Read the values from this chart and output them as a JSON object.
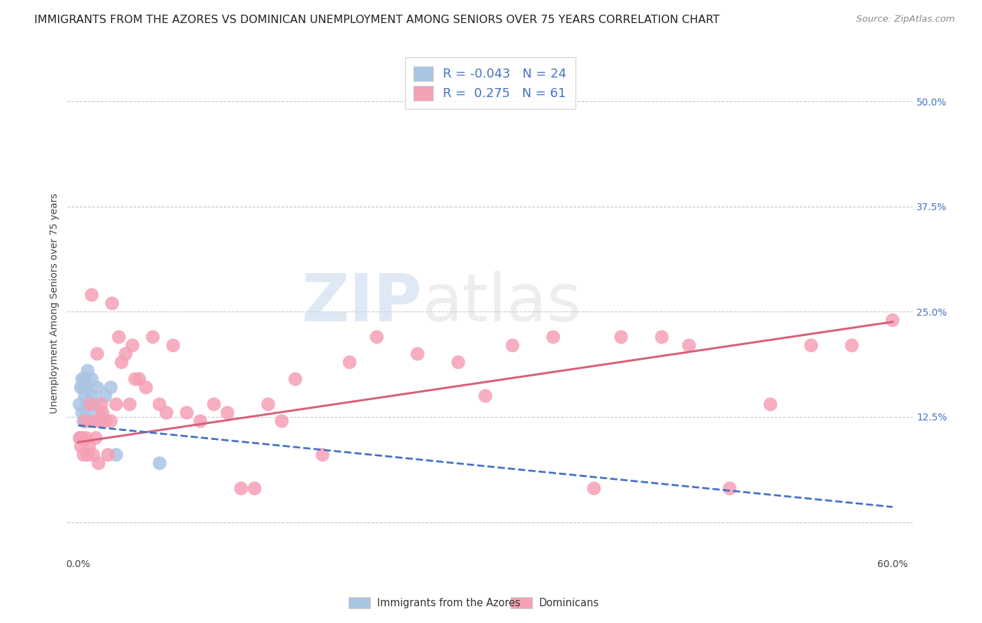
{
  "title": "IMMIGRANTS FROM THE AZORES VS DOMINICAN UNEMPLOYMENT AMONG SENIORS OVER 75 YEARS CORRELATION CHART",
  "source": "Source: ZipAtlas.com",
  "ylabel": "Unemployment Among Seniors over 75 years",
  "xlim": [
    -0.008,
    0.615
  ],
  "ylim": [
    -0.04,
    0.56
  ],
  "xtick_positions": [
    0.0,
    0.1,
    0.2,
    0.3,
    0.4,
    0.5,
    0.6
  ],
  "xticklabels": [
    "0.0%",
    "",
    "",
    "",
    "",
    "",
    "60.0%"
  ],
  "ytick_positions": [
    0.0,
    0.125,
    0.25,
    0.375,
    0.5
  ],
  "yticklabels": [
    "",
    "12.5%",
    "25.0%",
    "37.5%",
    "50.0%"
  ],
  "grid_color": "#c8c8c8",
  "bg_color": "#ffffff",
  "watermark_zip": "ZIP",
  "watermark_atlas": "atlas",
  "legend_line1": "R = -0.043   N = 24",
  "legend_line2": "R =  0.275   N = 61",
  "legend_label1": "Immigrants from the Azores",
  "legend_label2": "Dominicans",
  "blue_dot_color": "#aac4e4",
  "pink_dot_color": "#f5a0b5",
  "blue_line_color": "#4472c4",
  "pink_line_color": "#d9607a",
  "title_fontsize": 11.5,
  "label_fontsize": 10,
  "tick_fontsize": 10,
  "blue_x": [
    0.001,
    0.002,
    0.002,
    0.003,
    0.003,
    0.004,
    0.004,
    0.005,
    0.005,
    0.006,
    0.006,
    0.007,
    0.007,
    0.008,
    0.009,
    0.01,
    0.01,
    0.012,
    0.014,
    0.016,
    0.02,
    0.024,
    0.028,
    0.06
  ],
  "blue_y": [
    0.14,
    0.1,
    0.16,
    0.13,
    0.17,
    0.12,
    0.16,
    0.15,
    0.17,
    0.13,
    0.16,
    0.14,
    0.18,
    0.12,
    0.14,
    0.15,
    0.17,
    0.14,
    0.16,
    0.13,
    0.15,
    0.16,
    0.08,
    0.07
  ],
  "pink_x": [
    0.001,
    0.002,
    0.003,
    0.004,
    0.005,
    0.006,
    0.007,
    0.008,
    0.009,
    0.01,
    0.011,
    0.012,
    0.013,
    0.014,
    0.015,
    0.016,
    0.017,
    0.018,
    0.02,
    0.022,
    0.024,
    0.025,
    0.028,
    0.03,
    0.032,
    0.035,
    0.038,
    0.04,
    0.042,
    0.045,
    0.05,
    0.055,
    0.06,
    0.065,
    0.07,
    0.08,
    0.09,
    0.1,
    0.11,
    0.12,
    0.13,
    0.14,
    0.15,
    0.16,
    0.18,
    0.2,
    0.22,
    0.25,
    0.28,
    0.3,
    0.32,
    0.35,
    0.38,
    0.4,
    0.43,
    0.45,
    0.48,
    0.51,
    0.54,
    0.57,
    0.6
  ],
  "pink_y": [
    0.1,
    0.09,
    0.1,
    0.08,
    0.12,
    0.1,
    0.08,
    0.09,
    0.14,
    0.27,
    0.08,
    0.12,
    0.1,
    0.2,
    0.07,
    0.12,
    0.14,
    0.13,
    0.12,
    0.08,
    0.12,
    0.26,
    0.14,
    0.22,
    0.19,
    0.2,
    0.14,
    0.21,
    0.17,
    0.17,
    0.16,
    0.22,
    0.14,
    0.13,
    0.21,
    0.13,
    0.12,
    0.14,
    0.13,
    0.04,
    0.04,
    0.14,
    0.12,
    0.17,
    0.08,
    0.19,
    0.22,
    0.2,
    0.19,
    0.15,
    0.21,
    0.22,
    0.04,
    0.22,
    0.22,
    0.21,
    0.04,
    0.14,
    0.21,
    0.21,
    0.24
  ],
  "pink_line_start_x": 0.0,
  "pink_line_start_y": 0.095,
  "pink_line_end_x": 0.6,
  "pink_line_end_y": 0.238,
  "blue_line_start_x": 0.0,
  "blue_line_start_y": 0.115,
  "blue_line_end_x": 0.6,
  "blue_line_end_y": 0.018
}
